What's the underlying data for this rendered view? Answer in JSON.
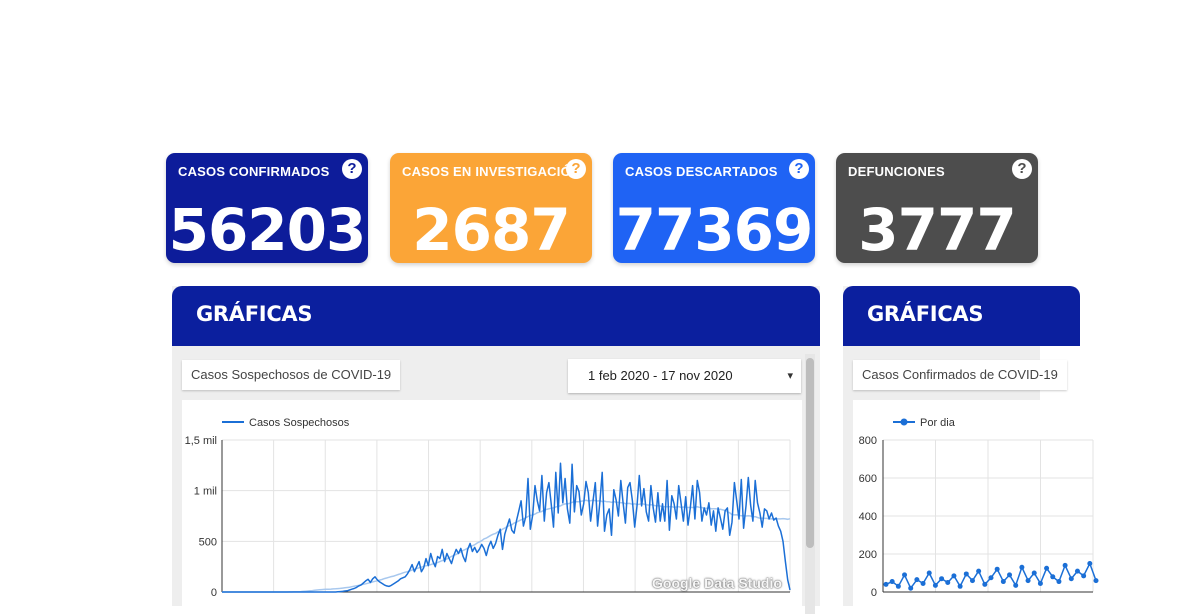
{
  "stats": [
    {
      "label": "CASOS CONFIRMADOS",
      "value": "56203",
      "color": "#0d1c9a"
    },
    {
      "label": "CASOS EN INVESTIGACIÓN",
      "value": "2687",
      "color": "#fba537"
    },
    {
      "label": "CASOS DESCARTADOS",
      "value": "77369",
      "color": "#1f63f4"
    },
    {
      "label": "DEFUNCIONES",
      "value": "3777",
      "color": "#4d4d4d"
    }
  ],
  "help_glyph": "?",
  "panels": [
    {
      "title": "GRÁFICAS",
      "report_title": "Casos Sospechosos de COVID-19",
      "date_range": "1 feb 2020 - 17 nov 2020",
      "dropdown_glyph": "▾",
      "watermark": "Google Data Studio"
    },
    {
      "title": "GRÁFICAS",
      "report_title": "Casos Confirmados de COVID-19"
    }
  ],
  "chart_data": [
    {
      "type": "line",
      "legend": [
        "Casos Sospechosos"
      ],
      "legend_position": "top-left",
      "x_range": [
        "1 feb 2020",
        "17 nov 2020"
      ],
      "ylim": [
        0,
        1500
      ],
      "y_ticks": [
        "0",
        "500",
        "1 mil",
        "1,5 mil"
      ],
      "grid": true,
      "series": [
        {
          "name": "Casos Sospechosos",
          "color": "#1b6fd6",
          "values": [
            0,
            0,
            0,
            0,
            0,
            0,
            0,
            0,
            0,
            0,
            0,
            0,
            0,
            0,
            0,
            0,
            0,
            0,
            0,
            0,
            0,
            0,
            0,
            0,
            0,
            0,
            0,
            0,
            0,
            0,
            0,
            0,
            0,
            0,
            0,
            0,
            0,
            0,
            0,
            0,
            0,
            0,
            0,
            0,
            0,
            0,
            0,
            0,
            0,
            0,
            2,
            4,
            6,
            10,
            12,
            20,
            28,
            35,
            45,
            60,
            70,
            90,
            110,
            125,
            95,
            130,
            150,
            120,
            100,
            85,
            70,
            60,
            55,
            65,
            80,
            95,
            110,
            130,
            140,
            150,
            180,
            220,
            270,
            200,
            250,
            300,
            200,
            240,
            330,
            260,
            380,
            300,
            250,
            350,
            330,
            420,
            300,
            380,
            330,
            280,
            360,
            420,
            380,
            430,
            350,
            300,
            420,
            480,
            400,
            440,
            390,
            420,
            470,
            430,
            360,
            450,
            500,
            430,
            480,
            560,
            620,
            420,
            570,
            650,
            720,
            610,
            580,
            700,
            800,
            900,
            650,
            740,
            1120,
            620,
            760,
            1050,
            900,
            800,
            1150,
            700,
            980,
            1080,
            870,
            640,
            1180,
            780,
            1270,
            880,
            1120,
            820,
            680,
            1260,
            790,
            1050,
            990,
            760,
            870,
            1090,
            980,
            700,
            890,
            1080,
            650,
            890,
            1180,
            600,
            760,
            820,
            560,
            1010,
            910,
            750,
            1100,
            880,
            680,
            1030,
            1080,
            900,
            640,
            850,
            1150,
            850,
            1020,
            790,
            700,
            1050,
            830,
            690,
            980,
            700,
            870,
            700,
            1100,
            610,
            950,
            870,
            720,
            1050,
            880,
            700,
            940,
            660,
            830,
            1050,
            720,
            1100,
            980,
            700,
            830,
            760,
            880,
            660,
            800,
            600,
            830,
            730,
            620,
            800,
            830,
            560,
            690,
            1080,
            900,
            720,
            1110,
            630,
            850,
            1130,
            860,
            700,
            1100,
            880,
            780,
            640,
            820,
            800,
            720,
            780,
            710,
            730,
            650,
            600,
            500,
            300,
            120,
            20
          ]
        },
        {
          "name": "",
          "color": "#a8c8ee",
          "values": "trend"
        }
      ]
    },
    {
      "type": "line",
      "legend": [
        "Por dia"
      ],
      "legend_position": "top-left",
      "ylim": [
        0,
        800
      ],
      "y_ticks": [
        "0",
        "200",
        "400",
        "600",
        "800"
      ],
      "grid": true,
      "series": [
        {
          "name": "Por dia",
          "color": "#1b6fd6",
          "values": [
            40,
            55,
            30,
            90,
            20,
            65,
            45,
            100,
            35,
            70,
            50,
            85,
            30,
            95,
            60,
            110,
            40,
            75,
            120,
            55,
            90,
            35,
            130,
            60,
            100,
            45,
            125,
            80,
            55,
            140,
            70,
            110,
            85,
            150,
            60
          ]
        }
      ]
    }
  ]
}
